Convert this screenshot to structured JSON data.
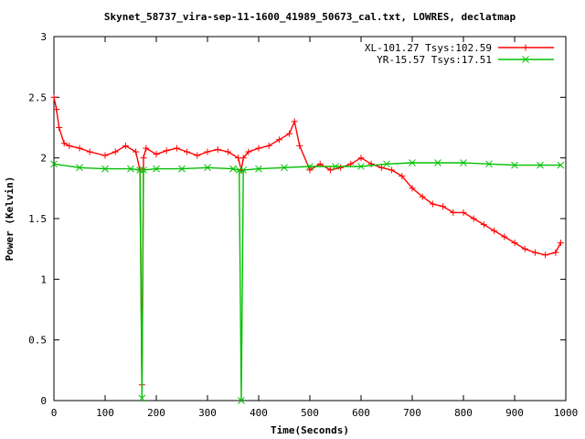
{
  "chart_data": {
    "type": "line",
    "title": "Skynet_58737_vira-sep-11-1600_41989_50673_cal.txt, LOWRES, declatmap",
    "xlabel": "Time(Seconds)",
    "ylabel": "Power (Kelvin)",
    "xlim": [
      0,
      1000
    ],
    "ylim": [
      0,
      3
    ],
    "xticks": [
      0,
      100,
      200,
      300,
      400,
      500,
      600,
      700,
      800,
      900,
      1000
    ],
    "xtick_labels": [
      "0",
      "100",
      "200",
      "300",
      "400",
      "500",
      "600",
      "700",
      "800",
      "900",
      "1000"
    ],
    "yticks": [
      0,
      0.5,
      1,
      1.5,
      2,
      2.5,
      3
    ],
    "ytick_labels": [
      "0",
      "0.5",
      "1",
      "1.5",
      "2",
      "2.5",
      "3"
    ],
    "grid": false,
    "legend_position": "top-right",
    "series": [
      {
        "name": "XL-101.27 Tsys:102.59",
        "color": "#ff0000",
        "marker": "plus",
        "x": [
          0,
          5,
          10,
          20,
          30,
          50,
          70,
          100,
          120,
          140,
          160,
          168,
          172,
          175,
          180,
          200,
          220,
          240,
          260,
          280,
          300,
          320,
          340,
          360,
          366,
          370,
          380,
          400,
          420,
          440,
          460,
          470,
          480,
          500,
          520,
          540,
          560,
          580,
          600,
          620,
          640,
          660,
          680,
          700,
          720,
          740,
          760,
          780,
          800,
          820,
          840,
          860,
          880,
          900,
          920,
          940,
          960,
          980,
          990
        ],
        "y": [
          2.5,
          2.4,
          2.25,
          2.12,
          2.1,
          2.08,
          2.05,
          2.02,
          2.05,
          2.1,
          2.05,
          1.9,
          0.13,
          2.0,
          2.08,
          2.03,
          2.06,
          2.08,
          2.05,
          2.02,
          2.05,
          2.07,
          2.05,
          2.0,
          1.9,
          2.0,
          2.05,
          2.08,
          2.1,
          2.15,
          2.2,
          2.3,
          2.1,
          1.9,
          1.95,
          1.9,
          1.92,
          1.95,
          2.0,
          1.95,
          1.92,
          1.9,
          1.85,
          1.75,
          1.68,
          1.62,
          1.6,
          1.55,
          1.55,
          1.5,
          1.45,
          1.4,
          1.35,
          1.3,
          1.25,
          1.22,
          1.2,
          1.22,
          1.3
        ]
      },
      {
        "name": "YR-15.57 Tsys:17.51",
        "color": "#00c000",
        "marker": "x",
        "x": [
          0,
          50,
          100,
          150,
          168,
          172,
          175,
          200,
          250,
          300,
          350,
          362,
          366,
          370,
          400,
          450,
          500,
          550,
          600,
          650,
          700,
          750,
          800,
          850,
          900,
          950,
          990
        ],
        "y": [
          1.95,
          1.92,
          1.91,
          1.91,
          1.9,
          0.02,
          1.9,
          1.91,
          1.91,
          1.92,
          1.91,
          1.9,
          0.0,
          1.9,
          1.91,
          1.92,
          1.93,
          1.93,
          1.93,
          1.95,
          1.96,
          1.96,
          1.96,
          1.95,
          1.94,
          1.94,
          1.94
        ]
      }
    ]
  }
}
